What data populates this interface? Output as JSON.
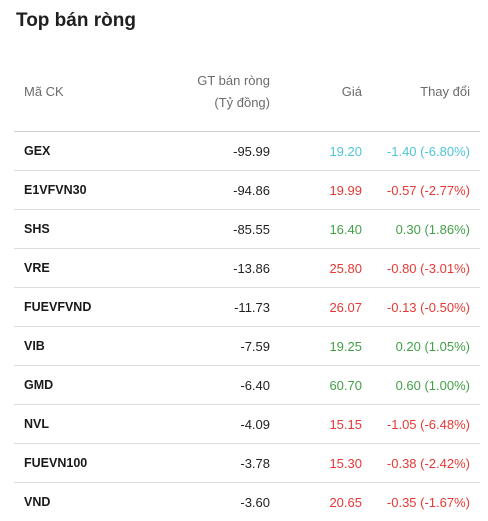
{
  "title": "Top bán ròng",
  "columns": {
    "symbol": "Mã CK",
    "net_value_line1": "GT bán ròng",
    "net_value_line2": "(Tỷ đồng)",
    "price": "Giá",
    "change": "Thay đổi"
  },
  "colors": {
    "up": "#43a047",
    "down": "#e53935",
    "floor": "#4fc3d9"
  },
  "rows": [
    {
      "symbol": "GEX",
      "net_value": "-95.99",
      "price": "19.20",
      "change": "-1.40 (-6.80%)",
      "status": "floor"
    },
    {
      "symbol": "E1VFVN30",
      "net_value": "-94.86",
      "price": "19.99",
      "change": "-0.57 (-2.77%)",
      "status": "down"
    },
    {
      "symbol": "SHS",
      "net_value": "-85.55",
      "price": "16.40",
      "change": "0.30 (1.86%)",
      "status": "up"
    },
    {
      "symbol": "VRE",
      "net_value": "-13.86",
      "price": "25.80",
      "change": "-0.80 (-3.01%)",
      "status": "down"
    },
    {
      "symbol": "FUEVFVND",
      "net_value": "-11.73",
      "price": "26.07",
      "change": "-0.13 (-0.50%)",
      "status": "down"
    },
    {
      "symbol": "VIB",
      "net_value": "-7.59",
      "price": "19.25",
      "change": "0.20 (1.05%)",
      "status": "up"
    },
    {
      "symbol": "GMD",
      "net_value": "-6.40",
      "price": "60.70",
      "change": "0.60 (1.00%)",
      "status": "up"
    },
    {
      "symbol": "NVL",
      "net_value": "-4.09",
      "price": "15.15",
      "change": "-1.05 (-6.48%)",
      "status": "down"
    },
    {
      "symbol": "FUEVN100",
      "net_value": "-3.78",
      "price": "15.30",
      "change": "-0.38 (-2.42%)",
      "status": "down"
    },
    {
      "symbol": "VND",
      "net_value": "-3.60",
      "price": "20.65",
      "change": "-0.35 (-1.67%)",
      "status": "down"
    }
  ]
}
